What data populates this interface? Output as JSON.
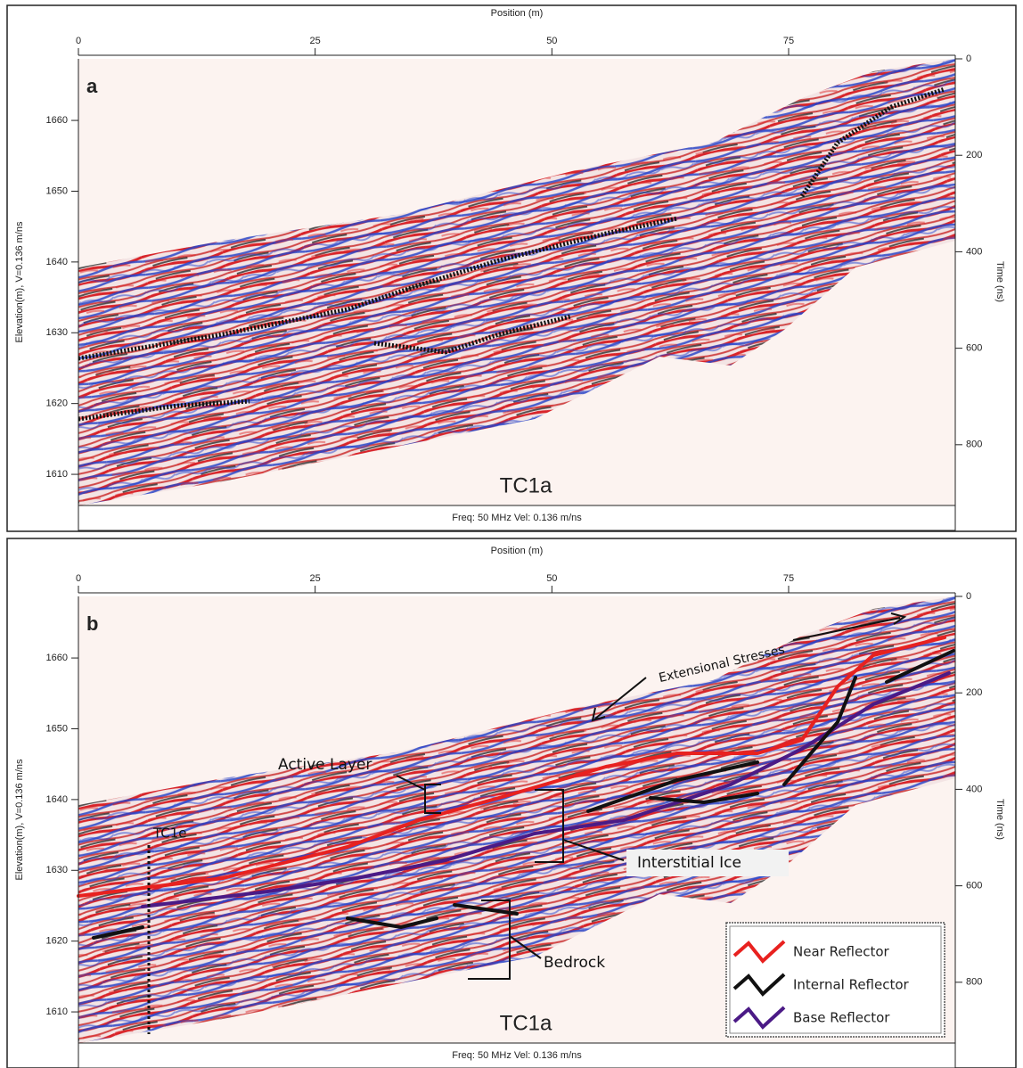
{
  "chart_data": [
    {
      "type": "radargram",
      "panel_label": "a",
      "section_label": "TC1a",
      "x_label": "Position (m)",
      "y_label": "Elevation(m), V=0.136 m/ns",
      "y2_label": "Time (ns)",
      "footer": "Freq: 50 MHz Vel: 0.136 m/ns",
      "xlim": [
        0,
        92.6
      ],
      "xticks": [
        0,
        25,
        50,
        75
      ],
      "ylim": [
        1605.6,
        1668.7
      ],
      "yticks": [
        1610,
        1620,
        1630,
        1640,
        1650,
        1660
      ],
      "y2lim": [
        0,
        926
      ],
      "y2ticks": [
        0,
        200,
        400,
        600,
        800
      ]
    },
    {
      "type": "radargram",
      "panel_label": "b",
      "section_label": "TC1a",
      "x_label": "Position (m)",
      "y_label": "Elevation(m), V=0.136 m/ns",
      "y2_label": "Time (ns)",
      "footer": "Freq: 50 MHz Vel: 0.136 m/ns",
      "xlim": [
        0,
        92.6
      ],
      "xticks": [
        0,
        25,
        50,
        75
      ],
      "ylim": [
        1605.6,
        1668.7
      ],
      "yticks": [
        1610,
        1620,
        1630,
        1640,
        1650,
        1660
      ],
      "y2lim": [
        0,
        926
      ],
      "y2ticks": [
        0,
        200,
        400,
        600,
        800
      ],
      "annotations": [
        "Extensional Stresses",
        "Active Layer",
        "Interstitial Ice",
        "Bedrock",
        "TC1e"
      ],
      "legend": [
        {
          "name": "Near Reflector",
          "color": "#e8211f"
        },
        {
          "name": "Internal Reflector",
          "color": "#111111"
        },
        {
          "name": "Base Reflector",
          "color": "#4b1a86"
        }
      ]
    }
  ]
}
